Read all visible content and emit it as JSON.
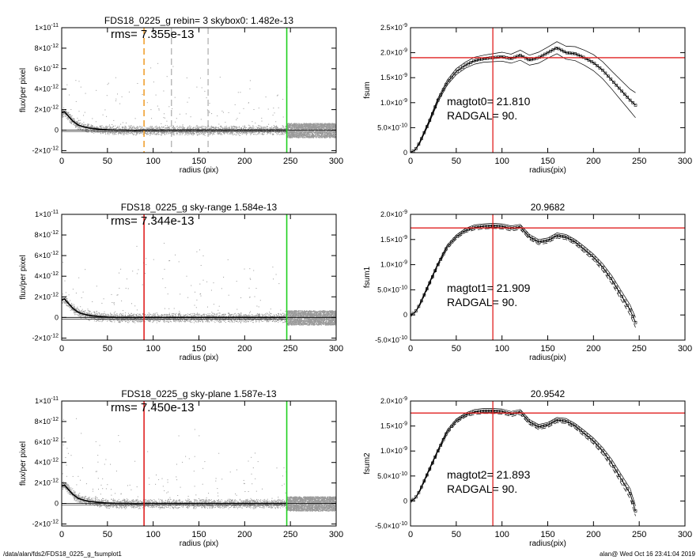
{
  "footer": {
    "path": "/data/alan/fds2/FDS18_0225_g_fsumplot1",
    "stamp": "alan@  Wed Oct 16 23:41:04 2019"
  },
  "colors": {
    "axis": "#000000",
    "scatter": "#9a9a9a",
    "profile": "#000000",
    "orange": "#f0a030",
    "red": "#e02020",
    "green": "#20d020",
    "gray": "#9a9a9a"
  },
  "chart_data": [
    {
      "type": "scatter",
      "title": "FDS18_0225_g rebin= 3   skybox0:  1.482e-13",
      "annotation": "rms= 7.355e-13",
      "xlabel": "radius (pix)",
      "ylabel": "flux/per pixel",
      "xlim": [
        0,
        300
      ],
      "ylim": [
        -2.2e-12,
        1e-11
      ],
      "xticks": [
        0,
        50,
        100,
        150,
        200,
        250,
        300
      ],
      "yticks": [
        {
          "v": -2e-12,
          "m": "-2",
          "e": "-12"
        },
        {
          "v": 0,
          "m": "0",
          "e": ""
        },
        {
          "v": 2e-12,
          "m": "2",
          "e": "-12"
        },
        {
          "v": 4e-12,
          "m": "4",
          "e": "-12"
        },
        {
          "v": 6e-12,
          "m": "6",
          "e": "-12"
        },
        {
          "v": 8e-12,
          "m": "8",
          "e": "-12"
        },
        {
          "v": 1e-11,
          "m": "1",
          "e": "-11",
          "pre": "×10"
        }
      ],
      "vlines": [
        {
          "x": 90,
          "color": "orange",
          "dash": true
        },
        {
          "x": 120,
          "color": "gray",
          "dash": true
        },
        {
          "x": 160,
          "color": "gray",
          "dash": true
        },
        {
          "x": 246,
          "color": "green",
          "dash": false
        }
      ],
      "profile_x": [
        0,
        3,
        6,
        9,
        12,
        15,
        18,
        21,
        25,
        30,
        35,
        40,
        45,
        50,
        60,
        70,
        80,
        90,
        100,
        110,
        120,
        130,
        140,
        150,
        160,
        170,
        180,
        190,
        200,
        210,
        220,
        230,
        246
      ],
      "profile_y": [
        1.7e-12,
        1.8e-12,
        1.5e-12,
        1.2e-12,
        9e-13,
        7e-13,
        5e-13,
        4e-13,
        3e-13,
        2e-13,
        1.5e-13,
        1e-13,
        6e-14,
        3e-14,
        0,
        0,
        -2e-14,
        0,
        0,
        0,
        0,
        0,
        0,
        0,
        0,
        0,
        0,
        0,
        0,
        0,
        0,
        0,
        0
      ],
      "seed": 11
    },
    {
      "type": "line",
      "title": "",
      "annotation_lines": [
        "magtot0=  21.810",
        " RADGAL=     90."
      ],
      "xlabel": "radius(pix)",
      "ylabel": "fsum",
      "xlim": [
        0,
        300
      ],
      "ylim": [
        0,
        2.5e-09
      ],
      "xticks": [
        0,
        50,
        100,
        150,
        200,
        250,
        300
      ],
      "yticks": [
        {
          "v": 0,
          "m": "0",
          "e": ""
        },
        {
          "v": 5e-10,
          "m": "5.0×10",
          "e": "-10"
        },
        {
          "v": 1e-09,
          "m": "1.0×10",
          "e": "-9"
        },
        {
          "v": 1.5e-09,
          "m": "1.5×10",
          "e": "-9"
        },
        {
          "v": 2e-09,
          "m": "2.0×10",
          "e": "-9"
        },
        {
          "v": 2.5e-09,
          "m": "2.5×10",
          "e": "-9"
        }
      ],
      "hline": 1.9e-09,
      "vline": 90,
      "x": [
        0,
        5,
        10,
        20,
        30,
        40,
        50,
        60,
        70,
        80,
        90,
        100,
        110,
        120,
        130,
        140,
        150,
        160,
        170,
        180,
        190,
        200,
        210,
        220,
        230,
        240,
        246
      ],
      "y": [
        0,
        5e-11,
        2e-10,
        6e-10,
        1.05e-09,
        1.4e-09,
        1.62e-09,
        1.75e-09,
        1.84e-09,
        1.88e-09,
        1.9e-09,
        1.92e-09,
        1.88e-09,
        1.95e-09,
        1.85e-09,
        1.9e-09,
        2e-09,
        2.1e-09,
        2e-09,
        1.98e-09,
        1.9e-09,
        1.8e-09,
        1.65e-09,
        1.45e-09,
        1.25e-09,
        1.05e-09,
        9.5e-10
      ],
      "upper_spread": [
        0,
        0,
        2e-11,
        3e-11,
        4e-11,
        5e-11,
        6e-11,
        6e-11,
        7e-11,
        7e-11,
        8e-11,
        9e-11,
        9e-11,
        1e-10,
        1e-10,
        1.1e-10,
        1.1e-10,
        1.2e-10,
        1.3e-10,
        1.4e-10,
        1.5e-10,
        1.6e-10,
        1.7e-10,
        1.8e-10,
        2e-10,
        2.2e-10,
        2.5e-10
      ],
      "markers": true
    },
    {
      "type": "scatter",
      "title": "FDS18_0225_g sky-range  1.584e-13",
      "annotation": "rms= 7.344e-13",
      "xlabel": "radius (pix)",
      "ylabel": "flux/per pixel",
      "xlim": [
        0,
        300
      ],
      "ylim": [
        -2.2e-12,
        1e-11
      ],
      "xticks": [
        0,
        50,
        100,
        150,
        200,
        250,
        300
      ],
      "yticks": [
        {
          "v": -2e-12,
          "m": "-2",
          "e": "-12"
        },
        {
          "v": 0,
          "m": "0",
          "e": ""
        },
        {
          "v": 2e-12,
          "m": "2",
          "e": "-12"
        },
        {
          "v": 4e-12,
          "m": "4",
          "e": "-12"
        },
        {
          "v": 6e-12,
          "m": "6",
          "e": "-12"
        },
        {
          "v": 8e-12,
          "m": "8",
          "e": "-12"
        },
        {
          "v": 1e-11,
          "m": "1",
          "e": "-11",
          "pre": "×10"
        }
      ],
      "vlines": [
        {
          "x": 90,
          "color": "red",
          "dash": false
        },
        {
          "x": 246,
          "color": "green",
          "dash": false
        }
      ],
      "profile_x": [
        0,
        3,
        6,
        9,
        12,
        15,
        18,
        21,
        25,
        30,
        35,
        40,
        45,
        50,
        60,
        70,
        80,
        90,
        100,
        110,
        120,
        130,
        140,
        150,
        160,
        170,
        180,
        190,
        200,
        210,
        220,
        230,
        246
      ],
      "profile_y": [
        1.7e-12,
        1.8e-12,
        1.5e-12,
        1.2e-12,
        9e-13,
        7e-13,
        5e-13,
        4e-13,
        3e-13,
        2e-13,
        1.5e-13,
        1e-13,
        6e-14,
        3e-14,
        0,
        0,
        -2e-14,
        0,
        0,
        0,
        0,
        0,
        0,
        0,
        0,
        0,
        0,
        0,
        0,
        0,
        0,
        0,
        0
      ],
      "seed": 23
    },
    {
      "type": "line",
      "title": "20.9682",
      "annotation_lines": [
        "magtot1=  21.909",
        " RADGAL=     90."
      ],
      "xlabel": "radius(pix)",
      "ylabel": "fsum1",
      "xlim": [
        0,
        300
      ],
      "ylim": [
        -5e-10,
        2e-09
      ],
      "xticks": [
        0,
        50,
        100,
        150,
        200,
        250,
        300
      ],
      "yticks": [
        {
          "v": -5e-10,
          "m": "-5.0×10",
          "e": "-10"
        },
        {
          "v": 0,
          "m": "0",
          "e": ""
        },
        {
          "v": 5e-10,
          "m": "5.0×10",
          "e": "-10"
        },
        {
          "v": 1e-09,
          "m": "1.0×10",
          "e": "-9"
        },
        {
          "v": 1.5e-09,
          "m": "1.5×10",
          "e": "-9"
        },
        {
          "v": 2e-09,
          "m": "2.0×10",
          "e": "-9"
        }
      ],
      "hline": 1.73e-09,
      "vline": 90,
      "x": [
        0,
        5,
        10,
        20,
        30,
        40,
        50,
        60,
        70,
        80,
        90,
        100,
        110,
        120,
        130,
        140,
        150,
        160,
        170,
        180,
        190,
        200,
        210,
        220,
        230,
        240,
        246
      ],
      "y": [
        0,
        5e-11,
        2e-10,
        6e-10,
        1e-09,
        1.35e-09,
        1.55e-09,
        1.68e-09,
        1.74e-09,
        1.76e-09,
        1.77e-09,
        1.76e-09,
        1.72e-09,
        1.75e-09,
        1.55e-09,
        1.45e-09,
        1.48e-09,
        1.58e-09,
        1.55e-09,
        1.45e-09,
        1.3e-09,
        1.15e-09,
        9.5e-10,
        7e-10,
        4e-10,
        1e-10,
        -1.5e-10
      ],
      "upper_spread": [
        0,
        0,
        2e-11,
        3e-11,
        3e-11,
        4e-11,
        4e-11,
        4e-11,
        5e-11,
        5e-11,
        5e-11,
        5e-11,
        5e-11,
        5e-11,
        5e-11,
        5e-11,
        5e-11,
        5e-11,
        5e-11,
        5e-11,
        6e-11,
        6e-11,
        7e-11,
        8e-11,
        9e-11,
        1e-10,
        1e-10
      ],
      "markers": true
    },
    {
      "type": "scatter",
      "title": "FDS18_0225_g sky-plane  1.587e-13",
      "annotation": "rms= 7.450e-13",
      "xlabel": "radius (pix)",
      "ylabel": "flux/per pixel",
      "xlim": [
        0,
        300
      ],
      "ylim": [
        -2.2e-12,
        1e-11
      ],
      "xticks": [
        0,
        50,
        100,
        150,
        200,
        250,
        300
      ],
      "yticks": [
        {
          "v": -2e-12,
          "m": "-2",
          "e": "-12"
        },
        {
          "v": 0,
          "m": "0",
          "e": ""
        },
        {
          "v": 2e-12,
          "m": "2",
          "e": "-12"
        },
        {
          "v": 4e-12,
          "m": "4",
          "e": "-12"
        },
        {
          "v": 6e-12,
          "m": "6",
          "e": "-12"
        },
        {
          "v": 8e-12,
          "m": "8",
          "e": "-12"
        },
        {
          "v": 1e-11,
          "m": "1",
          "e": "-11",
          "pre": "×10"
        }
      ],
      "vlines": [
        {
          "x": 90,
          "color": "red",
          "dash": false
        },
        {
          "x": 246,
          "color": "green",
          "dash": false
        }
      ],
      "profile_x": [
        0,
        3,
        6,
        9,
        12,
        15,
        18,
        21,
        25,
        30,
        35,
        40,
        45,
        50,
        60,
        70,
        80,
        90,
        100,
        110,
        120,
        130,
        140,
        150,
        160,
        170,
        180,
        190,
        200,
        210,
        220,
        230,
        246
      ],
      "profile_y": [
        1.7e-12,
        1.8e-12,
        1.5e-12,
        1.2e-12,
        9e-13,
        7e-13,
        5e-13,
        4e-13,
        3e-13,
        2e-13,
        1.5e-13,
        1e-13,
        6e-14,
        3e-14,
        0,
        0,
        -2e-14,
        0,
        0,
        0,
        0,
        0,
        0,
        0,
        0,
        0,
        0,
        0,
        0,
        0,
        0,
        0,
        0
      ],
      "seed": 37
    },
    {
      "type": "line",
      "title": "20.9542",
      "annotation_lines": [
        "magtot2=  21.893",
        " RADGAL=     90."
      ],
      "xlabel": "radius(pix)",
      "ylabel": "fsum2",
      "xlim": [
        0,
        300
      ],
      "ylim": [
        -5e-10,
        2e-09
      ],
      "xticks": [
        0,
        50,
        100,
        150,
        200,
        250,
        300
      ],
      "yticks": [
        {
          "v": -5e-10,
          "m": "-5.0×10",
          "e": "-10"
        },
        {
          "v": 0,
          "m": "0",
          "e": ""
        },
        {
          "v": 5e-10,
          "m": "5.0×10",
          "e": "-10"
        },
        {
          "v": 1e-09,
          "m": "1.0×10",
          "e": "-9"
        },
        {
          "v": 1.5e-09,
          "m": "1.5×10",
          "e": "-9"
        },
        {
          "v": 2e-09,
          "m": "2.0×10",
          "e": "-9"
        }
      ],
      "hline": 1.76e-09,
      "vline": 90,
      "x": [
        0,
        5,
        10,
        20,
        30,
        40,
        50,
        60,
        70,
        80,
        90,
        100,
        110,
        120,
        130,
        140,
        150,
        160,
        170,
        180,
        190,
        200,
        210,
        220,
        230,
        240,
        246
      ],
      "y": [
        0,
        5e-11,
        2e-10,
        6e-10,
        1e-09,
        1.38e-09,
        1.6e-09,
        1.72e-09,
        1.78e-09,
        1.8e-09,
        1.8e-09,
        1.79e-09,
        1.74e-09,
        1.78e-09,
        1.58e-09,
        1.48e-09,
        1.52e-09,
        1.62e-09,
        1.6e-09,
        1.5e-09,
        1.35e-09,
        1.2e-09,
        1e-09,
        7.5e-10,
        4.5e-10,
        1.5e-10,
        -2e-10
      ],
      "upper_spread": [
        0,
        0,
        2e-11,
        3e-11,
        3e-11,
        4e-11,
        4e-11,
        4e-11,
        5e-11,
        5e-11,
        5e-11,
        5e-11,
        5e-11,
        5e-11,
        5e-11,
        5e-11,
        5e-11,
        5e-11,
        5e-11,
        5e-11,
        6e-11,
        6e-11,
        7e-11,
        8e-11,
        9e-11,
        1e-10,
        1e-10
      ],
      "markers": true
    }
  ]
}
